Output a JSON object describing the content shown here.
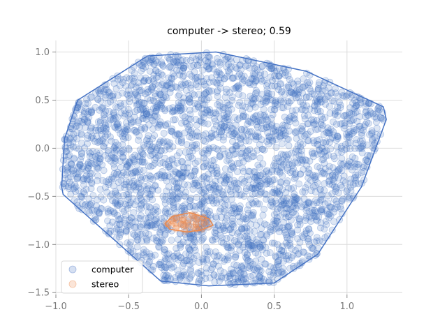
{
  "chart_data": {
    "type": "scatter",
    "title": "computer -> stereo; 0.59",
    "xlabel": "",
    "ylabel": "",
    "xlim": [
      -1.0,
      1.38
    ],
    "ylim": [
      -1.52,
      1.12
    ],
    "x_ticks": [
      -1.0,
      -0.5,
      0.0,
      0.5,
      1.0
    ],
    "x_tick_labels": [
      "−1.0",
      "−0.5",
      "0.0",
      "0.5",
      "1.0"
    ],
    "y_ticks": [
      1.0,
      0.5,
      0.0,
      -0.5,
      -1.0,
      -1.5
    ],
    "y_tick_labels": [
      "1.0",
      "0.5",
      "0.0",
      "−0.5",
      "−1.0",
      "−1.5"
    ],
    "grid": true,
    "legend": {
      "placement": "lower-left"
    },
    "series": [
      {
        "name": "computer",
        "color": "#4472c4",
        "point_count": 3000,
        "hull": [
          [
            0.1,
            1.0
          ],
          [
            0.72,
            0.8
          ],
          [
            1.25,
            0.43
          ],
          [
            1.27,
            0.3
          ],
          [
            1.1,
            -0.4
          ],
          [
            0.8,
            -1.1
          ],
          [
            0.5,
            -1.4
          ],
          [
            0.05,
            -1.43
          ],
          [
            -0.28,
            -1.38
          ],
          [
            -0.95,
            -0.48
          ],
          [
            -0.96,
            -0.4
          ],
          [
            -0.94,
            0.1
          ],
          [
            -0.85,
            0.5
          ],
          [
            -0.37,
            0.96
          ]
        ]
      },
      {
        "name": "stereo",
        "color": "#ed8a4c",
        "point_count": 60,
        "hull": [
          [
            -0.08,
            -0.67
          ],
          [
            0.05,
            -0.73
          ],
          [
            0.08,
            -0.8
          ],
          [
            0.0,
            -0.85
          ],
          [
            -0.1,
            -0.87
          ],
          [
            -0.22,
            -0.84
          ],
          [
            -0.25,
            -0.78
          ],
          [
            -0.2,
            -0.71
          ]
        ]
      }
    ]
  }
}
